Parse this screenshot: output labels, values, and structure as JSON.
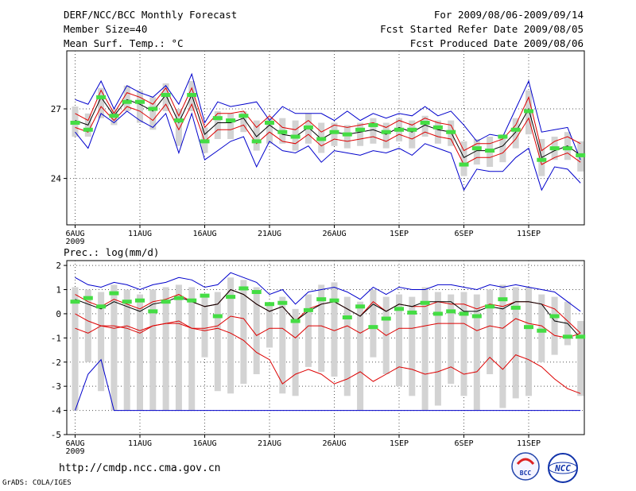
{
  "header": {
    "title": "DERF/NCC/BCC Monthly Forecast",
    "member": "Member Size=40",
    "variable": "Mean Surf. Temp.: °C",
    "for_range": "For 2009/08/06-2009/09/14",
    "fcst_started": "Fcst Started Refer Date 2009/08/05",
    "fcst_produced": "Fcst Produced Date 2009/08/06"
  },
  "footer": {
    "url": "http://cmdp.ncc.cma.gov.cn",
    "grads": "GrADS: COLA/IGES",
    "logo_left": "BCC",
    "logo_right": "NCC"
  },
  "colors": {
    "envelope": "#0000cc",
    "inner": "#dd0000",
    "mean": "#000000",
    "box": "#d3d3d3",
    "median": "#44dd44"
  },
  "chart_data": [
    {
      "type": "box-ensemble",
      "title": "Mean Surf. Temp.: °C",
      "ylabel": "Mean Surf. Temp.: °C",
      "ylim": [
        22.0,
        29.5
      ],
      "yticks": [
        24,
        27
      ],
      "x": [
        1,
        2,
        3,
        4,
        5,
        6,
        7,
        8,
        9,
        10,
        11,
        12,
        13,
        14,
        15,
        16,
        17,
        18,
        19,
        20,
        21,
        22,
        23,
        24,
        25,
        26,
        27,
        28,
        29,
        30,
        31,
        32,
        33,
        34,
        35,
        36,
        37,
        38,
        39,
        40
      ],
      "xtick_days": [
        1,
        6,
        11,
        16,
        21,
        26,
        31,
        36
      ],
      "xtick_labels": [
        "6AUG",
        "11AUG",
        "16AUG",
        "21AUG",
        "26AUG",
        "1SEP",
        "6SEP",
        "11SEP"
      ],
      "year_label": "2009",
      "series": [
        {
          "name": "max",
          "values": [
            27.4,
            27.2,
            28.2,
            27.0,
            28.0,
            27.7,
            27.5,
            28.0,
            27.2,
            28.5,
            26.4,
            27.3,
            27.1,
            27.2,
            27.3,
            26.5,
            27.1,
            26.8,
            26.8,
            26.8,
            26.5,
            26.9,
            26.5,
            26.8,
            26.6,
            26.8,
            26.7,
            27.1,
            26.7,
            26.9,
            26.3,
            25.6,
            25.9,
            25.8,
            27.0,
            28.2,
            26.0,
            26.1,
            26.2,
            24.8
          ]
        },
        {
          "name": "upper",
          "values": [
            26.8,
            26.5,
            27.8,
            26.8,
            27.7,
            27.5,
            27.2,
            27.9,
            26.7,
            27.9,
            26.2,
            26.8,
            26.8,
            26.9,
            26.2,
            26.7,
            26.2,
            26.1,
            26.5,
            26.0,
            26.3,
            26.2,
            26.3,
            26.4,
            26.2,
            26.5,
            26.3,
            26.6,
            26.4,
            26.3,
            25.2,
            25.5,
            25.5,
            25.7,
            26.3,
            27.5,
            25.2,
            25.6,
            25.8,
            25.5
          ]
        },
        {
          "name": "mean",
          "values": [
            26.5,
            26.3,
            27.5,
            26.7,
            27.4,
            27.2,
            26.9,
            27.6,
            26.4,
            27.6,
            25.9,
            26.4,
            26.4,
            26.6,
            25.8,
            26.3,
            25.9,
            25.8,
            26.2,
            25.7,
            26.0,
            25.9,
            26.0,
            26.1,
            25.9,
            26.2,
            26.0,
            26.3,
            26.1,
            26.0,
            24.9,
            25.2,
            25.2,
            25.4,
            26.0,
            27.0,
            24.9,
            25.2,
            25.4,
            25.0
          ]
        },
        {
          "name": "lower",
          "values": [
            26.2,
            26.0,
            27.1,
            26.5,
            27.1,
            26.9,
            26.5,
            27.2,
            26.1,
            27.2,
            25.6,
            26.1,
            26.1,
            26.3,
            25.5,
            26.0,
            25.6,
            25.5,
            25.9,
            25.4,
            25.7,
            25.6,
            25.7,
            25.8,
            25.6,
            25.9,
            25.7,
            26.0,
            25.8,
            25.7,
            24.6,
            24.9,
            24.9,
            25.1,
            25.7,
            26.6,
            24.6,
            24.9,
            25.1,
            24.7
          ]
        },
        {
          "name": "min",
          "values": [
            26.0,
            25.3,
            26.8,
            26.4,
            26.9,
            26.5,
            26.2,
            26.8,
            25.1,
            26.8,
            24.8,
            25.2,
            25.6,
            25.8,
            24.5,
            25.6,
            25.2,
            25.1,
            25.4,
            24.7,
            25.2,
            25.1,
            25.0,
            25.2,
            25.1,
            25.3,
            25.0,
            25.5,
            25.3,
            25.1,
            23.5,
            24.4,
            24.3,
            24.3,
            24.9,
            25.3,
            23.5,
            24.5,
            24.4,
            23.8
          ]
        }
      ],
      "boxes": {
        "box_low": [
          25.8,
          25.8,
          26.6,
          26.3,
          26.9,
          26.4,
          26.1,
          26.9,
          25.4,
          26.9,
          25.1,
          25.7,
          25.7,
          26.0,
          25.2,
          25.5,
          25.5,
          25.2,
          25.5,
          25.1,
          25.4,
          25.3,
          25.4,
          25.5,
          25.3,
          25.6,
          25.3,
          25.8,
          25.5,
          25.4,
          24.1,
          24.6,
          24.5,
          24.7,
          25.3,
          25.9,
          24.1,
          24.8,
          24.8,
          24.3
        ],
        "box_high": [
          27.1,
          26.8,
          27.9,
          27.0,
          28.0,
          27.8,
          27.5,
          28.1,
          27.0,
          28.2,
          26.2,
          26.9,
          26.8,
          26.9,
          26.5,
          26.6,
          26.6,
          26.5,
          26.8,
          26.4,
          26.4,
          26.3,
          26.4,
          26.6,
          26.4,
          26.6,
          26.5,
          26.7,
          26.5,
          26.5,
          25.6,
          25.7,
          25.8,
          25.9,
          26.6,
          27.8,
          25.7,
          25.8,
          26.0,
          25.6
        ],
        "median": [
          26.4,
          26.1,
          27.5,
          26.7,
          27.3,
          27.3,
          27.0,
          27.6,
          26.5,
          27.6,
          25.6,
          26.6,
          26.5,
          26.7,
          25.6,
          26.4,
          26.0,
          25.8,
          26.2,
          25.7,
          26.0,
          25.9,
          26.1,
          26.3,
          26.0,
          26.1,
          26.1,
          26.4,
          26.2,
          26.0,
          24.6,
          25.3,
          25.2,
          25.8,
          26.1,
          26.9,
          24.8,
          25.3,
          25.3,
          25.0
        ]
      }
    },
    {
      "type": "box-ensemble",
      "title": "Prec.: log(mm/d)",
      "ylabel": "Prec.: log(mm/d)",
      "ylim": [
        -5,
        2.2
      ],
      "yticks": [
        -5,
        -4,
        -3,
        -2,
        -1,
        0,
        1,
        2
      ],
      "x": [
        1,
        2,
        3,
        4,
        5,
        6,
        7,
        8,
        9,
        10,
        11,
        12,
        13,
        14,
        15,
        16,
        17,
        18,
        19,
        20,
        21,
        22,
        23,
        24,
        25,
        26,
        27,
        28,
        29,
        30,
        31,
        32,
        33,
        34,
        35,
        36,
        37,
        38,
        39,
        40
      ],
      "xtick_days": [
        1,
        6,
        11,
        16,
        21,
        26,
        31,
        36
      ],
      "xtick_labels": [
        "6AUG",
        "11AUG",
        "16AUG",
        "21AUG",
        "26AUG",
        "1SEP",
        "6SEP",
        "11SEP"
      ],
      "year_label": "2009",
      "series": [
        {
          "name": "max",
          "values": [
            1.5,
            1.2,
            1.1,
            1.3,
            1.2,
            1.0,
            1.2,
            1.3,
            1.5,
            1.4,
            1.1,
            1.2,
            1.7,
            1.5,
            1.3,
            0.8,
            1.0,
            0.4,
            0.9,
            1.0,
            1.1,
            0.9,
            0.6,
            1.1,
            0.8,
            1.1,
            1.0,
            1.0,
            1.2,
            1.2,
            1.1,
            1.0,
            1.2,
            1.1,
            1.2,
            1.1,
            1.0,
            0.9,
            0.5,
            0.1
          ]
        },
        {
          "name": "upper",
          "values": [
            0.8,
            0.5,
            0.3,
            0.6,
            0.4,
            0.2,
            0.5,
            0.6,
            0.8,
            0.5,
            0.3,
            0.4,
            1.0,
            0.8,
            0.4,
            0.1,
            0.3,
            -0.3,
            0.2,
            0.4,
            0.5,
            0.2,
            -0.1,
            0.5,
            0.1,
            0.4,
            0.3,
            0.3,
            0.5,
            0.4,
            0.4,
            0.2,
            0.4,
            0.3,
            0.5,
            0.5,
            0.4,
            0.2,
            -0.3,
            -0.8
          ]
        },
        {
          "name": "mean",
          "values": [
            0.6,
            0.4,
            0.2,
            0.5,
            0.3,
            0.1,
            0.4,
            0.5,
            0.7,
            0.5,
            0.3,
            0.4,
            1.0,
            0.8,
            0.4,
            0.1,
            0.3,
            -0.3,
            0.1,
            0.4,
            0.5,
            0.2,
            -0.1,
            0.4,
            0.1,
            0.4,
            0.3,
            0.5,
            0.5,
            0.5,
            0.1,
            0.1,
            0.3,
            0.2,
            0.5,
            0.5,
            0.4,
            -0.3,
            -0.4,
            -1.0
          ]
        },
        {
          "name": "lower",
          "values": [
            0.0,
            -0.3,
            -0.5,
            -0.5,
            -0.6,
            -0.8,
            -0.5,
            -0.4,
            -0.3,
            -0.6,
            -0.6,
            -0.5,
            -0.1,
            -0.2,
            -0.9,
            -0.6,
            -0.6,
            -1.0,
            -0.5,
            -0.5,
            -0.7,
            -0.5,
            -0.8,
            -0.5,
            -0.9,
            -0.6,
            -0.6,
            -0.5,
            -0.4,
            -0.4,
            -0.4,
            -0.7,
            -0.5,
            -0.6,
            -0.2,
            -0.4,
            -0.5,
            -0.9,
            -1.0,
            -0.8
          ]
        },
        {
          "name": "inner-low",
          "values": [
            -0.6,
            -0.8,
            -0.5,
            -0.6,
            -0.5,
            -0.7,
            -0.5,
            -0.4,
            -0.4,
            -0.6,
            -0.7,
            -0.6,
            -0.8,
            -1.1,
            -1.6,
            -1.9,
            -2.9,
            -2.5,
            -2.3,
            -2.5,
            -2.9,
            -2.7,
            -2.4,
            -2.8,
            -2.5,
            -2.2,
            -2.3,
            -2.5,
            -2.4,
            -2.2,
            -2.5,
            -2.4,
            -1.8,
            -2.3,
            -1.7,
            -1.9,
            -2.2,
            -2.7,
            -3.1,
            -3.3
          ]
        },
        {
          "name": "min",
          "values": [
            -4.0,
            -2.5,
            -1.9,
            -4.0,
            -4.0,
            -4.0,
            -4.0,
            -4.0,
            -4.0,
            -4.0,
            -4.0,
            -4.0,
            -4.0,
            -4.0,
            -4.0,
            -4.0,
            -4.0,
            -4.0,
            -4.0,
            -4.0,
            -4.0,
            -4.0,
            -4.0,
            -4.0,
            -4.0,
            -4.0,
            -4.0,
            -4.0,
            -4.0,
            -4.0,
            -4.0,
            -4.0,
            -4.0,
            -4.0,
            -4.0,
            -4.0,
            -4.0,
            -4.0,
            -4.0,
            -4.0
          ]
        }
      ],
      "boxes": {
        "box_low": [
          -4.0,
          -2.0,
          -3.2,
          -4.0,
          -4.0,
          -4.0,
          -4.0,
          -4.0,
          -4.0,
          -4.0,
          -1.8,
          -3.2,
          -3.3,
          -2.9,
          -2.5,
          -1.4,
          -3.3,
          -3.4,
          -2.2,
          -2.4,
          -2.6,
          -3.4,
          -4.0,
          -1.8,
          -2.5,
          -3.0,
          -3.4,
          -4.0,
          -3.8,
          -2.9,
          -3.4,
          -4.0,
          -2.5,
          -3.9,
          -3.5,
          -3.4,
          -2.0,
          -1.7,
          -1.3,
          -3.4
        ],
        "box_high": [
          1.1,
          1.0,
          0.9,
          1.2,
          1.0,
          0.8,
          1.0,
          1.1,
          1.2,
          1.1,
          0.8,
          0.9,
          1.5,
          1.4,
          1.1,
          0.4,
          0.7,
          0.2,
          0.8,
          1.2,
          1.3,
          0.7,
          0.5,
          1.0,
          0.7,
          0.8,
          0.7,
          1.1,
          0.9,
          0.8,
          0.9,
          0.8,
          1.0,
          1.2,
          1.1,
          1.1,
          0.8,
          0.7,
          0.5,
          -0.3
        ],
        "median": [
          0.5,
          0.65,
          0.3,
          0.85,
          0.5,
          0.55,
          0.1,
          0.5,
          0.65,
          0.55,
          0.75,
          -0.1,
          0.7,
          1.05,
          0.9,
          0.4,
          0.45,
          -0.3,
          0.15,
          0.6,
          0.55,
          -0.15,
          0.3,
          -0.55,
          -0.2,
          0.2,
          0.05,
          0.45,
          0.0,
          0.1,
          0.0,
          -0.1,
          0.3,
          0.6,
          0.25,
          -0.55,
          -0.7,
          -0.1,
          -0.95,
          -0.95
        ]
      }
    }
  ]
}
